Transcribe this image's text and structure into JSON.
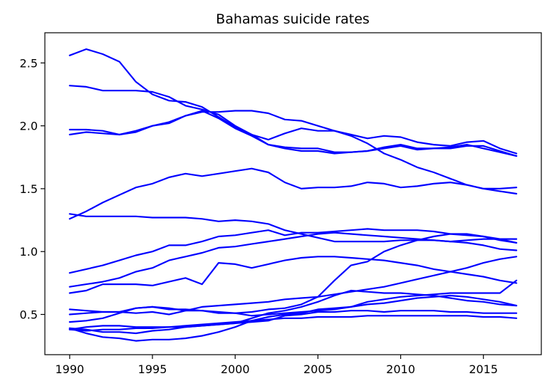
{
  "chart_data": {
    "type": "line",
    "title": "Bahamas suicide rates",
    "xlabel": "",
    "ylabel": "",
    "xlim": [
      1988.5,
      2018.5
    ],
    "ylim": [
      0.18,
      2.74
    ],
    "xticks": [
      1990,
      1995,
      2000,
      2005,
      2010,
      2015
    ],
    "yticks": [
      0.5,
      1.0,
      1.5,
      2.0,
      2.5
    ],
    "grid": false,
    "line_color": "#0000ff",
    "x": [
      1990,
      1991,
      1992,
      1993,
      1994,
      1995,
      1996,
      1997,
      1998,
      1999,
      2000,
      2001,
      2002,
      2003,
      2004,
      2005,
      2006,
      2007,
      2008,
      2009,
      2010,
      2011,
      2012,
      2013,
      2014,
      2015,
      2016,
      2017
    ],
    "series": [
      {
        "values": [
          2.56,
          2.61,
          2.57,
          2.51,
          2.35,
          2.25,
          2.2,
          2.19,
          2.15,
          2.07,
          1.99,
          1.93,
          1.89,
          1.94,
          1.98,
          1.96,
          1.96,
          1.93,
          1.9,
          1.92,
          1.91,
          1.87,
          1.85,
          1.84,
          1.87,
          1.88,
          1.82,
          1.78
        ]
      },
      {
        "values": [
          2.32,
          2.31,
          2.28,
          2.28,
          2.28,
          2.27,
          2.23,
          2.16,
          2.13,
          2.09,
          2.0,
          1.93,
          1.85,
          1.82,
          1.8,
          1.8,
          1.78,
          1.79,
          1.8,
          1.82,
          1.84,
          1.81,
          1.82,
          1.82,
          1.84,
          1.84,
          1.8,
          1.76
        ]
      },
      {
        "values": [
          1.97,
          1.97,
          1.96,
          1.93,
          1.96,
          2.0,
          2.02,
          2.08,
          2.12,
          2.06,
          1.98,
          1.92,
          1.85,
          1.83,
          1.82,
          1.82,
          1.79,
          1.79,
          1.8,
          1.83,
          1.85,
          1.82,
          1.82,
          1.83,
          1.85,
          1.82,
          1.79,
          1.76
        ]
      },
      {
        "values": [
          1.93,
          1.95,
          1.94,
          1.93,
          1.95,
          2.0,
          2.03,
          2.08,
          2.11,
          2.11,
          2.12,
          2.12,
          2.1,
          2.05,
          2.04,
          2.0,
          1.96,
          1.92,
          1.86,
          1.78,
          1.73,
          1.67,
          1.63,
          1.58,
          1.53,
          1.5,
          1.48,
          1.46
        ]
      },
      {
        "values": [
          1.26,
          1.32,
          1.39,
          1.45,
          1.51,
          1.54,
          1.59,
          1.62,
          1.6,
          1.62,
          1.64,
          1.66,
          1.63,
          1.55,
          1.5,
          1.51,
          1.51,
          1.52,
          1.55,
          1.54,
          1.51,
          1.52,
          1.54,
          1.55,
          1.53,
          1.5,
          1.5,
          1.51
        ]
      },
      {
        "values": [
          1.3,
          1.28,
          1.28,
          1.28,
          1.28,
          1.27,
          1.27,
          1.27,
          1.26,
          1.24,
          1.25,
          1.24,
          1.22,
          1.17,
          1.14,
          1.11,
          1.08,
          1.08,
          1.08,
          1.08,
          1.09,
          1.09,
          1.09,
          1.08,
          1.09,
          1.1,
          1.1,
          1.1
        ]
      },
      {
        "values": [
          0.83,
          0.86,
          0.89,
          0.93,
          0.97,
          1.0,
          1.05,
          1.05,
          1.08,
          1.12,
          1.13,
          1.15,
          1.17,
          1.13,
          1.15,
          1.15,
          1.16,
          1.17,
          1.18,
          1.17,
          1.17,
          1.17,
          1.16,
          1.14,
          1.13,
          1.12,
          1.1,
          1.07
        ]
      },
      {
        "values": [
          0.72,
          0.74,
          0.76,
          0.79,
          0.84,
          0.87,
          0.93,
          0.96,
          0.99,
          1.03,
          1.04,
          1.06,
          1.08,
          1.1,
          1.12,
          1.14,
          1.15,
          1.14,
          1.13,
          1.12,
          1.11,
          1.1,
          1.09,
          1.08,
          1.07,
          1.05,
          1.02,
          1.01
        ]
      },
      {
        "values": [
          0.67,
          0.69,
          0.74,
          0.74,
          0.74,
          0.73,
          0.76,
          0.79,
          0.74,
          0.91,
          0.9,
          0.87,
          0.9,
          0.93,
          0.95,
          0.96,
          0.96,
          0.95,
          0.94,
          0.93,
          0.91,
          0.89,
          0.86,
          0.84,
          0.82,
          0.8,
          0.77,
          0.75
        ]
      },
      {
        "values": [
          0.54,
          0.53,
          0.52,
          0.52,
          0.51,
          0.52,
          0.5,
          0.53,
          0.56,
          0.57,
          0.58,
          0.59,
          0.6,
          0.62,
          0.63,
          0.64,
          0.66,
          0.68,
          0.7,
          0.72,
          0.75,
          0.78,
          0.81,
          0.84,
          0.87,
          0.91,
          0.94,
          0.96
        ]
      },
      {
        "values": [
          0.5,
          0.51,
          0.52,
          0.52,
          0.55,
          0.56,
          0.54,
          0.54,
          0.53,
          0.51,
          0.51,
          0.52,
          0.54,
          0.55,
          0.58,
          0.64,
          0.77,
          0.89,
          0.92,
          1.0,
          1.05,
          1.09,
          1.12,
          1.14,
          1.14,
          1.12,
          1.09,
          1.07
        ]
      },
      {
        "values": [
          0.44,
          0.45,
          0.47,
          0.51,
          0.55,
          0.56,
          0.55,
          0.53,
          0.53,
          0.52,
          0.51,
          0.49,
          0.5,
          0.51,
          0.52,
          0.53,
          0.54,
          0.56,
          0.58,
          0.59,
          0.61,
          0.63,
          0.64,
          0.65,
          0.64,
          0.62,
          0.6,
          0.57
        ]
      },
      {
        "values": [
          0.39,
          0.38,
          0.36,
          0.36,
          0.35,
          0.37,
          0.38,
          0.4,
          0.41,
          0.42,
          0.43,
          0.47,
          0.51,
          0.53,
          0.56,
          0.6,
          0.65,
          0.69,
          0.68,
          0.67,
          0.67,
          0.66,
          0.65,
          0.63,
          0.61,
          0.6,
          0.58,
          0.57
        ]
      },
      {
        "values": [
          0.38,
          0.4,
          0.41,
          0.41,
          0.4,
          0.4,
          0.4,
          0.4,
          0.41,
          0.42,
          0.43,
          0.44,
          0.45,
          0.49,
          0.5,
          0.52,
          0.52,
          0.53,
          0.53,
          0.52,
          0.53,
          0.53,
          0.53,
          0.52,
          0.52,
          0.51,
          0.51,
          0.51
        ]
      },
      {
        "values": [
          0.38,
          0.37,
          0.38,
          0.38,
          0.39,
          0.39,
          0.4,
          0.41,
          0.42,
          0.43,
          0.44,
          0.45,
          0.46,
          0.47,
          0.47,
          0.48,
          0.48,
          0.48,
          0.49,
          0.49,
          0.49,
          0.49,
          0.49,
          0.49,
          0.49,
          0.48,
          0.48,
          0.47
        ]
      },
      {
        "values": [
          0.39,
          0.35,
          0.32,
          0.31,
          0.29,
          0.3,
          0.3,
          0.31,
          0.33,
          0.36,
          0.4,
          0.45,
          0.48,
          0.5,
          0.51,
          0.54,
          0.55,
          0.56,
          0.6,
          0.62,
          0.64,
          0.65,
          0.66,
          0.67,
          0.67,
          0.67,
          0.67,
          0.77
        ]
      }
    ]
  }
}
